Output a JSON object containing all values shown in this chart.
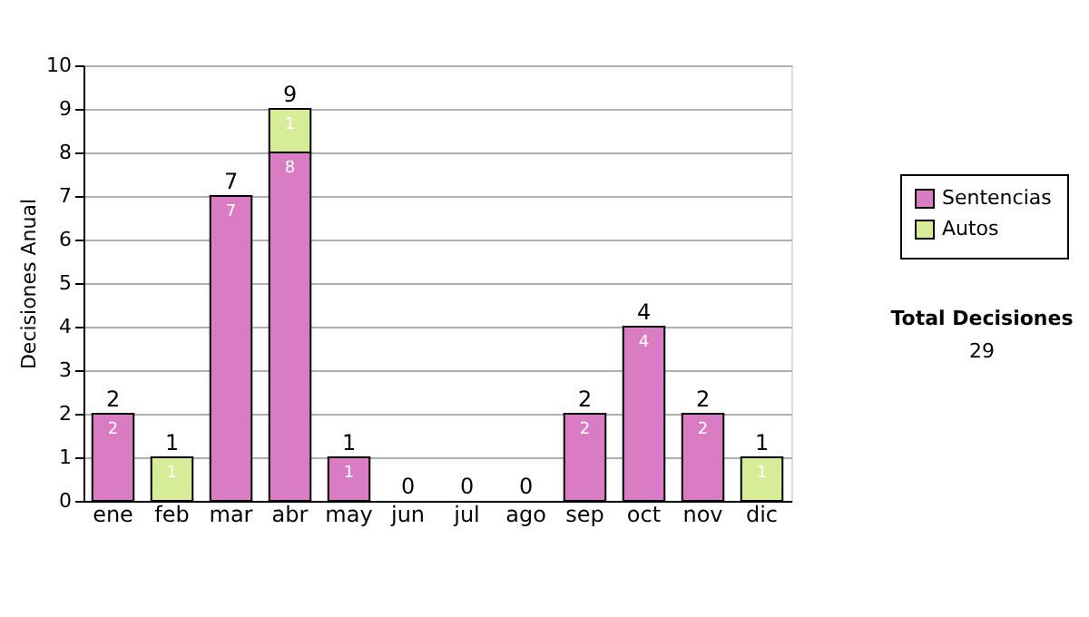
{
  "chart_data": {
    "type": "bar",
    "stacked": true,
    "ylabel": "Decisiones Anual",
    "categories": [
      "ene",
      "feb",
      "mar",
      "abr",
      "may",
      "jun",
      "jul",
      "ago",
      "sep",
      "oct",
      "nov",
      "dic"
    ],
    "series": [
      {
        "name": "Sentencias",
        "color": "#d97cc4",
        "values": [
          2,
          0,
          7,
          8,
          1,
          0,
          0,
          0,
          2,
          4,
          2,
          0
        ],
        "value_labels": [
          "2",
          null,
          "7",
          "8",
          "1",
          null,
          null,
          null,
          "2",
          "4",
          "2",
          null
        ]
      },
      {
        "name": "Autos",
        "color": "#d6ec96",
        "values": [
          0,
          1,
          0,
          1,
          0,
          0,
          0,
          0,
          0,
          0,
          0,
          1
        ],
        "value_labels": [
          null,
          "1",
          null,
          "1",
          null,
          null,
          null,
          null,
          null,
          null,
          null,
          "1"
        ]
      }
    ],
    "totals": [
      "2",
      "1",
      "7",
      "9",
      "1",
      "0",
      "0",
      "0",
      "2",
      "4",
      "2",
      "1"
    ],
    "ylim": [
      0,
      10
    ],
    "yticks": [
      0,
      1,
      2,
      3,
      4,
      5,
      6,
      7,
      8,
      9,
      10
    ],
    "grid": "y",
    "legend": "right",
    "annotations": [
      "Total Decisiones",
      "29"
    ]
  }
}
